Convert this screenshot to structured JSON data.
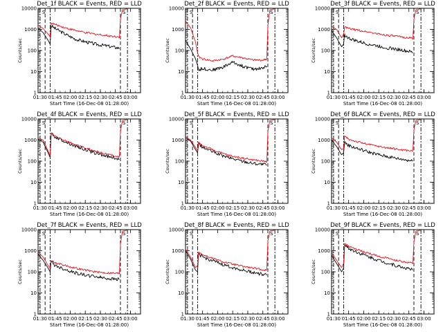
{
  "figure": {
    "colors": {
      "events": "#000000",
      "lld": "#e8101a",
      "axes": "#000000",
      "background": "#ffffff"
    },
    "x_ticks": [
      "01:30",
      "01:45",
      "02:00",
      "02:15",
      "02:30",
      "02:45",
      "03:00"
    ],
    "y_ticks": [
      "1",
      "10",
      "100",
      "1000",
      "10000"
    ],
    "xlabel": "Start Time (16-Dec-08 01:28:00)",
    "ylabel": "Counts/sec",
    "marker_label": "S"
  },
  "chart_data": [
    {
      "type": "line",
      "title": "Det_1f BLACK = Events, RED = LLD",
      "yscale": "log",
      "ylim": [
        1,
        10000
      ],
      "xlim": [
        "01:28",
        "03:10"
      ],
      "xlabel": "Start Time (16-Dec-08 01:28:00)",
      "ylabel": "Counts/sec",
      "vlines": [
        "01:30",
        "01:35",
        "01:40",
        "02:50",
        "02:57"
      ],
      "series": [
        {
          "name": "BLACK = Events",
          "x": [
            "01:28",
            "01:33",
            "01:38",
            "01:40",
            "01:41",
            "01:45",
            "01:55",
            "02:05",
            "02:15",
            "02:25",
            "02:35",
            "02:45",
            "02:49"
          ],
          "values": [
            1200,
            700,
            300,
            200,
            1500,
            1100,
            600,
            350,
            260,
            200,
            170,
            140,
            130
          ]
        },
        {
          "name": "RED = LLD",
          "x": [
            "01:28",
            "01:33",
            "01:38",
            "01:40",
            "01:41",
            "01:45",
            "01:55",
            "02:05",
            "02:15",
            "02:25",
            "02:35",
            "02:45",
            "02:49",
            "02:50",
            "02:52",
            "02:57"
          ],
          "values": [
            1600,
            1100,
            600,
            450,
            2000,
            1700,
            1200,
            900,
            700,
            600,
            520,
            460,
            440,
            3000,
            8500,
            9500
          ]
        }
      ]
    },
    {
      "type": "line",
      "title": "Det_2f BLACK = Events, RED = LLD",
      "yscale": "log",
      "ylim": [
        1,
        10000
      ],
      "xlim": [
        "01:28",
        "03:10"
      ],
      "xlabel": "Start Time (16-Dec-08 01:28:00)",
      "ylabel": "Counts/sec",
      "vlines": [
        "01:30",
        "01:35",
        "01:40",
        "02:50",
        "02:57"
      ],
      "series": [
        {
          "name": "BLACK = Events",
          "x": [
            "01:28",
            "01:33",
            "01:38",
            "01:40",
            "01:41",
            "01:45",
            "01:55",
            "02:05",
            "02:15",
            "02:25",
            "02:35",
            "02:45",
            "02:49"
          ],
          "values": [
            300,
            120,
            40,
            20,
            12,
            14,
            12,
            16,
            28,
            18,
            13,
            15,
            18
          ]
        },
        {
          "name": "RED = LLD",
          "x": [
            "01:28",
            "01:33",
            "01:38",
            "01:40",
            "01:41",
            "01:45",
            "01:55",
            "02:05",
            "02:15",
            "02:25",
            "02:35",
            "02:45",
            "02:49",
            "02:50",
            "02:52",
            "02:57"
          ],
          "values": [
            2500,
            1200,
            250,
            80,
            50,
            40,
            32,
            38,
            55,
            45,
            35,
            35,
            40,
            1500,
            8500,
            9500
          ]
        }
      ]
    },
    {
      "type": "line",
      "title": "Det_3f BLACK = Events, RED = LLD",
      "yscale": "log",
      "ylim": [
        1,
        10000
      ],
      "xlim": [
        "01:28",
        "03:10"
      ],
      "xlabel": "Start Time (16-Dec-08 01:28:00)",
      "ylabel": "Counts/sec",
      "vlines": [
        "01:30",
        "01:35",
        "01:40",
        "02:50",
        "02:57"
      ],
      "series": [
        {
          "name": "BLACK = Events",
          "x": [
            "01:28",
            "01:33",
            "01:38",
            "01:40",
            "01:41",
            "01:45",
            "01:55",
            "02:05",
            "02:15",
            "02:25",
            "02:35",
            "02:45",
            "02:49"
          ],
          "values": [
            900,
            400,
            150,
            200,
            550,
            380,
            260,
            200,
            160,
            130,
            110,
            90,
            80
          ]
        },
        {
          "name": "RED = LLD",
          "x": [
            "01:28",
            "01:33",
            "01:38",
            "01:40",
            "01:41",
            "01:45",
            "01:55",
            "02:05",
            "02:15",
            "02:25",
            "02:35",
            "02:45",
            "02:49",
            "02:50",
            "02:52",
            "02:57"
          ],
          "values": [
            1400,
            1000,
            400,
            600,
            1300,
            1100,
            900,
            750,
            600,
            520,
            450,
            400,
            380,
            3000,
            8500,
            9500
          ]
        }
      ]
    },
    {
      "type": "line",
      "title": "Det_4f BLACK = Events, RED = LLD",
      "yscale": "log",
      "ylim": [
        1,
        10000
      ],
      "xlim": [
        "01:28",
        "03:10"
      ],
      "xlabel": "Start Time (16-Dec-08 01:28:00)",
      "ylabel": "Counts/sec",
      "vlines": [
        "01:30",
        "01:35",
        "01:40",
        "02:50",
        "02:57"
      ],
      "series": [
        {
          "name": "BLACK = Events",
          "x": [
            "01:28",
            "01:33",
            "01:38",
            "01:40",
            "01:41",
            "01:45",
            "01:55",
            "02:05",
            "02:15",
            "02:25",
            "02:35",
            "02:45",
            "02:49"
          ],
          "values": [
            1100,
            800,
            250,
            150,
            2000,
            1400,
            850,
            520,
            350,
            240,
            180,
            140,
            120
          ]
        },
        {
          "name": "RED = LLD",
          "x": [
            "01:28",
            "01:33",
            "01:38",
            "01:40",
            "01:41",
            "01:45",
            "01:55",
            "02:05",
            "02:15",
            "02:25",
            "02:35",
            "02:45",
            "02:49",
            "02:50",
            "02:52",
            "02:57"
          ],
          "values": [
            1300,
            1000,
            300,
            180,
            2100,
            1500,
            950,
            600,
            420,
            300,
            220,
            180,
            160,
            2500,
            8500,
            9500
          ]
        }
      ]
    },
    {
      "type": "line",
      "title": "Det_5f BLACK = Events, RED = LLD",
      "yscale": "log",
      "ylim": [
        1,
        10000
      ],
      "xlim": [
        "01:28",
        "03:10"
      ],
      "xlabel": "Start Time (16-Dec-08 01:28:00)",
      "ylabel": "Counts/sec",
      "vlines": [
        "01:30",
        "01:35",
        "01:40",
        "02:50",
        "02:57"
      ],
      "series": [
        {
          "name": "BLACK = Events",
          "x": [
            "01:28",
            "01:33",
            "01:38",
            "01:40",
            "01:41",
            "01:45",
            "01:55",
            "02:05",
            "02:15",
            "02:25",
            "02:35",
            "02:45",
            "02:49"
          ],
          "values": [
            1300,
            900,
            350,
            250,
            700,
            450,
            280,
            180,
            130,
            100,
            80,
            70,
            65
          ]
        },
        {
          "name": "RED = LLD",
          "x": [
            "01:28",
            "01:33",
            "01:38",
            "01:40",
            "01:41",
            "01:45",
            "01:55",
            "02:05",
            "02:15",
            "02:25",
            "02:35",
            "02:45",
            "02:49",
            "02:50",
            "02:52",
            "02:57"
          ],
          "values": [
            1500,
            1000,
            450,
            300,
            800,
            550,
            350,
            230,
            170,
            140,
            115,
            100,
            95,
            2500,
            8500,
            9500
          ]
        }
      ]
    },
    {
      "type": "line",
      "title": "Det_6f BLACK = Events, RED = LLD",
      "yscale": "log",
      "ylim": [
        1,
        10000
      ],
      "xlim": [
        "01:28",
        "03:10"
      ],
      "xlabel": "Start Time (16-Dec-08 01:28:00)",
      "ylabel": "Counts/sec",
      "vlines": [
        "01:30",
        "01:35",
        "01:40",
        "02:50",
        "02:57"
      ],
      "series": [
        {
          "name": "BLACK = Events",
          "x": [
            "01:28",
            "01:33",
            "01:38",
            "01:40",
            "01:41",
            "01:45",
            "01:55",
            "02:05",
            "02:15",
            "02:25",
            "02:35",
            "02:45",
            "02:49"
          ],
          "values": [
            1000,
            500,
            200,
            250,
            800,
            550,
            380,
            270,
            200,
            160,
            130,
            110,
            100
          ]
        },
        {
          "name": "RED = LLD",
          "x": [
            "01:28",
            "01:33",
            "01:38",
            "01:40",
            "01:41",
            "01:45",
            "01:55",
            "02:05",
            "02:15",
            "02:25",
            "02:35",
            "02:45",
            "02:49",
            "02:50",
            "02:52",
            "02:57"
          ],
          "values": [
            1300,
            800,
            350,
            400,
            1500,
            1100,
            800,
            620,
            500,
            420,
            360,
            320,
            300,
            3000,
            8500,
            9500
          ]
        }
      ]
    },
    {
      "type": "line",
      "title": "Det_7f BLACK = Events, RED = LLD",
      "yscale": "log",
      "ylim": [
        1,
        10000
      ],
      "xlim": [
        "01:28",
        "03:10"
      ],
      "xlabel": "Start Time (16-Dec-08 01:28:00)",
      "ylabel": "Counts/sec",
      "vlines": [
        "01:30",
        "01:35",
        "01:40",
        "02:50",
        "02:57"
      ],
      "series": [
        {
          "name": "BLACK = Events",
          "x": [
            "01:28",
            "01:33",
            "01:38",
            "01:40",
            "01:41",
            "01:45",
            "01:55",
            "02:05",
            "02:15",
            "02:25",
            "02:35",
            "02:45",
            "02:49"
          ],
          "values": [
            700,
            350,
            150,
            100,
            300,
            200,
            130,
            90,
            70,
            60,
            50,
            45,
            45
          ]
        },
        {
          "name": "RED = LLD",
          "x": [
            "01:28",
            "01:33",
            "01:38",
            "01:40",
            "01:41",
            "01:45",
            "01:55",
            "02:05",
            "02:15",
            "02:25",
            "02:35",
            "02:45",
            "02:49",
            "02:50",
            "02:52",
            "02:57"
          ],
          "values": [
            900,
            500,
            200,
            150,
            350,
            270,
            200,
            150,
            120,
            100,
            90,
            85,
            85,
            2000,
            8500,
            9500
          ]
        }
      ]
    },
    {
      "type": "line",
      "title": "Det_8f BLACK = Events, RED = LLD",
      "yscale": "log",
      "ylim": [
        1,
        10000
      ],
      "xlim": [
        "01:28",
        "03:10"
      ],
      "xlabel": "Start Time (16-Dec-08 01:28:00)",
      "ylabel": "Counts/sec",
      "vlines": [
        "01:30",
        "01:35",
        "01:40",
        "02:50",
        "02:57"
      ],
      "series": [
        {
          "name": "BLACK = Events",
          "x": [
            "01:28",
            "01:33",
            "01:38",
            "01:40",
            "01:41",
            "01:45",
            "01:55",
            "02:05",
            "02:15",
            "02:25",
            "02:35",
            "02:45",
            "02:49"
          ],
          "values": [
            1000,
            400,
            120,
            100,
            700,
            500,
            330,
            220,
            160,
            120,
            95,
            75,
            70
          ]
        },
        {
          "name": "RED = LLD",
          "x": [
            "01:28",
            "01:33",
            "01:38",
            "01:40",
            "01:41",
            "01:45",
            "01:55",
            "02:05",
            "02:15",
            "02:25",
            "02:35",
            "02:45",
            "02:49",
            "02:50",
            "02:52",
            "02:57"
          ],
          "values": [
            1200,
            500,
            160,
            200,
            900,
            650,
            430,
            300,
            230,
            180,
            150,
            125,
            120,
            3000,
            8500,
            9500
          ]
        }
      ]
    },
    {
      "type": "line",
      "title": "Det_9f BLACK = Events, RED = LLD",
      "yscale": "log",
      "ylim": [
        1,
        10000
      ],
      "xlim": [
        "01:28",
        "03:10"
      ],
      "xlabel": "Start Time (16-Dec-08 01:28:00)",
      "ylabel": "Counts/sec",
      "vlines": [
        "01:30",
        "01:35",
        "01:40",
        "02:50",
        "02:57"
      ],
      "series": [
        {
          "name": "BLACK = Events",
          "x": [
            "01:28",
            "01:33",
            "01:38",
            "01:40",
            "01:41",
            "01:45",
            "01:55",
            "02:05",
            "02:15",
            "02:25",
            "02:35",
            "02:45",
            "02:49"
          ],
          "values": [
            600,
            250,
            100,
            150,
            2000,
            1300,
            800,
            520,
            350,
            250,
            180,
            140,
            120
          ]
        },
        {
          "name": "RED = LLD",
          "x": [
            "01:28",
            "01:33",
            "01:38",
            "01:40",
            "01:41",
            "01:45",
            "01:55",
            "02:05",
            "02:15",
            "02:25",
            "02:35",
            "02:45",
            "02:49",
            "02:50",
            "02:52",
            "02:57"
          ],
          "values": [
            800,
            350,
            160,
            250,
            2200,
            1600,
            1050,
            750,
            550,
            420,
            330,
            270,
            250,
            2500,
            8500,
            9500
          ]
        }
      ]
    }
  ]
}
